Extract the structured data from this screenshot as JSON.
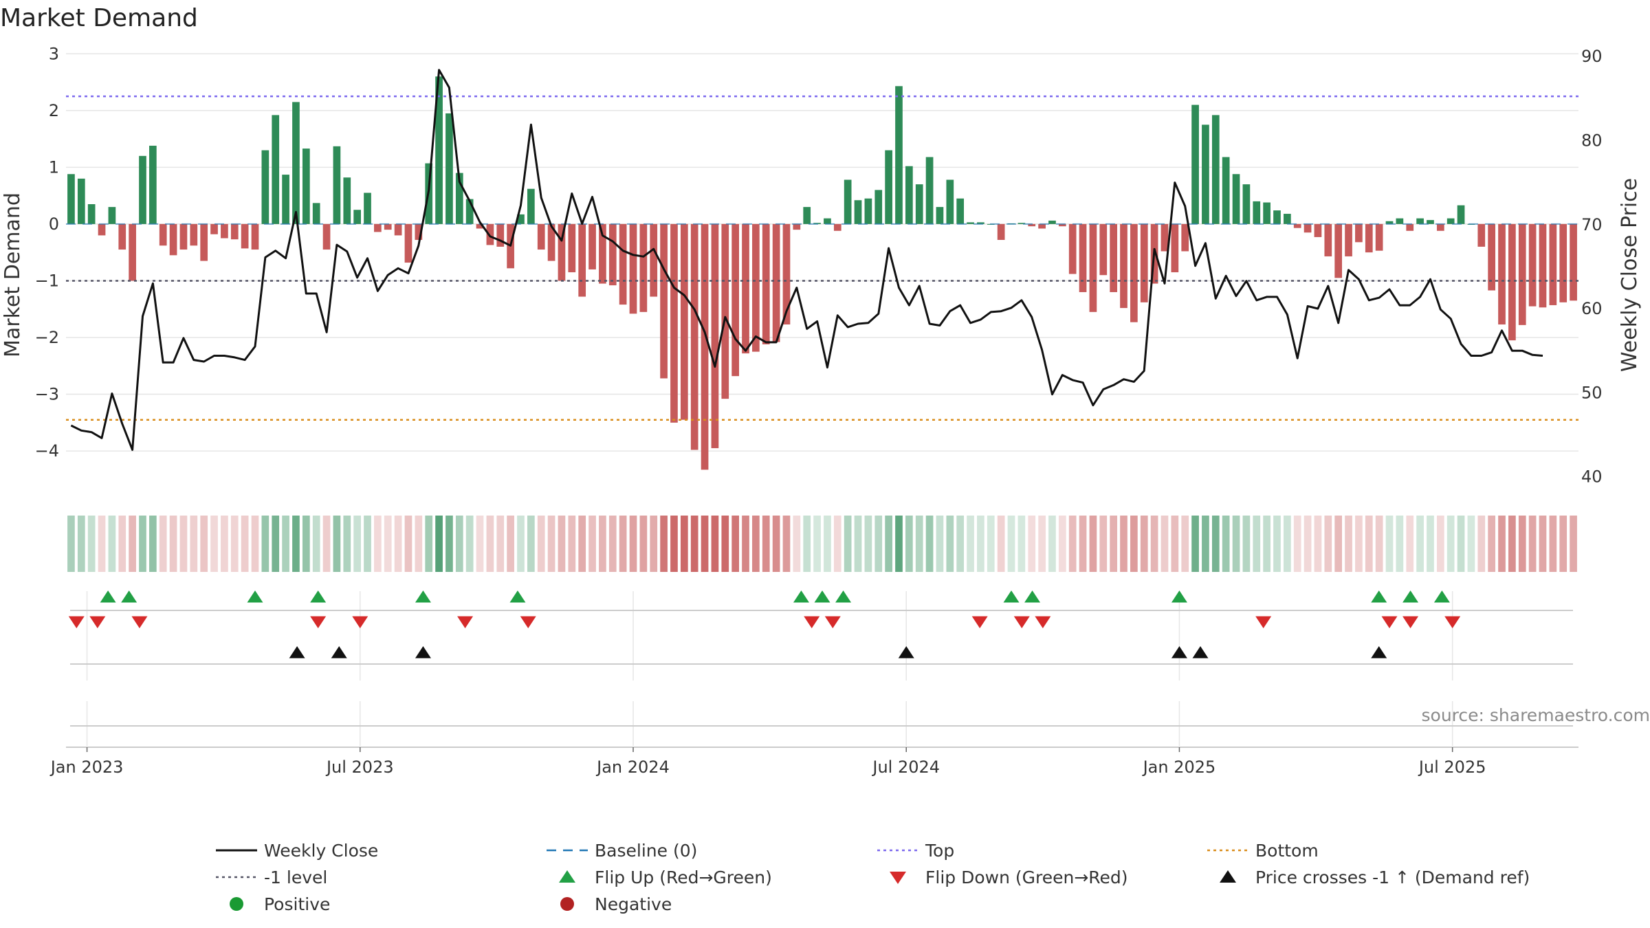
{
  "colors": {
    "pos_bar": "#2e8b57",
    "neg_bar": "#c65a5a",
    "price": "#111111",
    "baseline": "#1f77b4",
    "top": "#7b68ee",
    "bottom": "#d98c1a",
    "minus_one": "#555566",
    "flip_up": "#22a045",
    "flip_down": "#d62a2a",
    "cross": "#111111",
    "positive_dot": "#1a9a33",
    "negative_dot": "#b22222",
    "grid": "#e6e6e6"
  },
  "chart_data": {
    "type": "bar+line",
    "title": "Market Demand",
    "ylabel_left": "Market Demand",
    "ylabel_right": "Weekly Close Price",
    "ylim_left": [
      -4.75,
      3.1
    ],
    "ylim_right": [
      38,
      91
    ],
    "left_ticks": [
      "3",
      "2",
      "1",
      "0",
      "−1",
      "−2",
      "−3",
      "−4"
    ],
    "left_tick_values": [
      3,
      2,
      1,
      0,
      -1,
      -2,
      -3,
      -4
    ],
    "right_ticks": [
      "90",
      "80",
      "70",
      "60",
      "50",
      "40"
    ],
    "right_tick_values": [
      90,
      80,
      70,
      60,
      50,
      40
    ],
    "x_tick_labels": [
      "Jan 2023",
      "Jul 2023",
      "Jan 2024",
      "Jul 2024",
      "Jan 2025",
      "Jul 2025"
    ],
    "x_tick_week_index": [
      1,
      14,
      27,
      40,
      53,
      66
    ],
    "num_weeks": 72,
    "reference_lines": {
      "top": 2.25,
      "bottom": -3.45,
      "minus_one": -1,
      "baseline": 0
    },
    "demand": [
      0.88,
      0.8,
      0.35,
      -0.2,
      0.3,
      -0.45,
      -1,
      1.2,
      1.38,
      -0.38,
      -0.55,
      -0.45,
      -0.38,
      -0.65,
      -0.18,
      -0.25,
      -0.27,
      -0.43,
      -0.45,
      1.3,
      1.92,
      0.87,
      2.15,
      1.33,
      0.37,
      -0.45,
      1.37,
      0.82,
      0.25,
      0.55,
      -0.14,
      -0.1,
      -0.2,
      -0.68,
      -0.28,
      1.07,
      2.6,
      1.95,
      0.9,
      0.44,
      -0.08,
      -0.37,
      -0.4,
      -0.78,
      0.17,
      0.62,
      -0.45,
      -0.65,
      -1.0,
      -0.85,
      -1.28,
      -0.8,
      -1.05,
      -1.08,
      -1.42,
      -1.58,
      -1.55,
      -1.28,
      -2.72,
      -3.5,
      -3.45,
      -3.98,
      -4.33,
      -3.95,
      -3.08,
      -2.68,
      -2.28,
      -2.25,
      -2.12,
      -2.08,
      -1.77,
      -0.1,
      0.3,
      0.02,
      0.1,
      -0.12,
      0.78,
      0.42,
      0.45,
      0.6,
      1.3,
      2.43,
      1.02,
      0.7,
      1.18,
      0.3,
      0.78,
      0.45,
      0.03,
      0.03,
      0.0,
      -0.28,
      0.01,
      0.02,
      -0.04,
      -0.08,
      0.06,
      -0.04,
      -0.88,
      -1.2,
      -1.55,
      -0.9,
      -1.2,
      -1.48,
      -1.73,
      -1.38,
      -1.05,
      -0.48,
      -0.85,
      -0.48,
      2.1,
      1.75,
      1.92,
      1.18,
      0.88,
      0.7,
      0.4,
      0.38,
      0.24,
      0.18,
      -0.07,
      -0.15,
      -0.23,
      -0.57,
      -0.95,
      -0.57,
      -0.32,
      -0.5,
      -0.47,
      0.05,
      0.1,
      -0.12,
      0.1,
      0.07,
      -0.12,
      0.1,
      0.33,
      0.0,
      -0.4,
      -1.17,
      -1.77,
      -2.05,
      -1.78,
      -1.45,
      -1.47,
      -1.43,
      -1.38,
      -1.35
    ],
    "price": [
      46.1,
      45.5,
      45.3,
      44.6,
      49.9,
      46.3,
      43.2,
      59.1,
      63.0,
      53.6,
      53.6,
      56.5,
      53.9,
      53.7,
      54.4,
      54.4,
      54.2,
      53.9,
      55.5,
      66.1,
      66.9,
      66.0,
      71.5,
      61.8,
      61.8,
      57.2,
      67.6,
      66.8,
      63.7,
      66.0,
      62.1,
      64.0,
      64.8,
      64.2,
      67.5,
      74.1,
      88.4,
      86.3,
      75.1,
      72.8,
      70.3,
      68.6,
      68.1,
      67.5,
      72.3,
      81.9,
      73.2,
      69.8,
      68.1,
      73.7,
      70.1,
      73.3,
      68.7,
      68.0,
      66.9,
      66.4,
      66.2,
      67.1,
      64.7,
      62.5,
      61.6,
      59.9,
      57.2,
      53.1,
      59.0,
      56.4,
      55.0,
      56.7,
      56.0,
      56.0,
      59.7,
      62.5,
      57.6,
      58.5,
      53.0,
      59.2,
      57.8,
      58.2,
      58.3,
      59.4,
      67.2,
      62.5,
      60.4,
      62.7,
      58.2,
      58.0,
      59.7,
      60.4,
      58.3,
      58.7,
      59.6,
      59.7,
      60.1,
      61.0,
      59.0,
      55.1,
      49.8,
      52.1,
      51.5,
      51.2,
      48.5,
      50.4,
      50.9,
      51.6,
      51.3,
      52.6,
      67.1,
      63.0,
      75.0,
      72.2,
      65.1,
      67.8,
      61.2,
      63.9,
      61.5,
      63.3,
      61.0,
      61.4,
      61.4,
      59.3,
      54.1,
      60.3,
      60.0,
      62.7,
      58.3,
      64.6,
      63.5,
      61.0,
      61.3,
      62.3,
      60.4,
      60.4,
      61.4,
      63.5,
      59.9,
      58.8,
      55.8,
      54.4,
      54.4,
      54.8,
      57.4,
      55.0,
      55.0,
      54.5,
      54.4
    ],
    "flip_up_weeks": [
      2,
      3,
      9,
      12,
      17,
      21.5,
      35,
      36,
      37,
      45,
      46,
      53,
      62.5,
      64,
      65.5
    ],
    "flip_down_weeks": [
      0.5,
      1.5,
      3.5,
      12,
      14,
      19,
      22,
      35.5,
      36.5,
      43.5,
      45.5,
      46.5,
      57,
      63,
      64,
      66
    ],
    "cross_up_weeks": [
      11,
      13,
      17,
      40,
      53,
      54,
      62.5
    ],
    "legend": [
      {
        "label": "Weekly Close",
        "kind": "line"
      },
      {
        "label": "Baseline (0)",
        "kind": "dash"
      },
      {
        "label": "Top",
        "kind": "dot"
      },
      {
        "label": "Bottom",
        "kind": "dot-orange"
      },
      {
        "label": "-1 level",
        "kind": "dot-gray"
      },
      {
        "label": "Flip Up (Red→Green)",
        "kind": "tri-up-green"
      },
      {
        "label": "Flip Down (Green→Red)",
        "kind": "tri-down-red"
      },
      {
        "label": "Price crosses -1 ↑ (Demand ref)",
        "kind": "tri-up-black"
      },
      {
        "label": "Positive",
        "kind": "dot-green"
      },
      {
        "label": "Negative",
        "kind": "dot-red"
      }
    ]
  },
  "source": "source: sharemaestro.com"
}
